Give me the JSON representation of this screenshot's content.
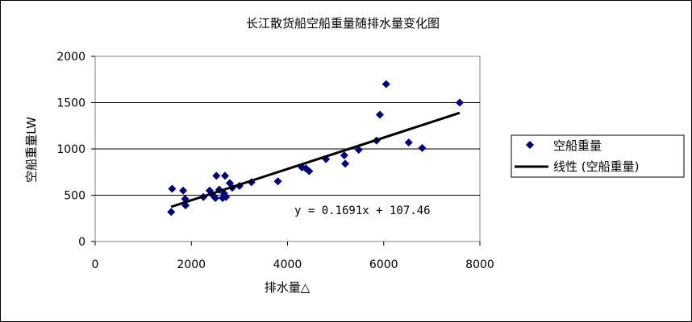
{
  "chart_data": {
    "type": "scatter",
    "title": "长江散货船空船重量随排水量变化图",
    "xlabel": "排水量△",
    "ylabel": "空船重量LW",
    "xlim": [
      0,
      8000
    ],
    "ylim": [
      0,
      2000
    ],
    "x_ticks": [
      "0",
      "2000",
      "4000",
      "6000",
      "8000"
    ],
    "y_ticks": [
      "0",
      "500",
      "1000",
      "1500",
      "2000"
    ],
    "grid": "horizontal",
    "legend_position": "right",
    "marker_color": "#000080",
    "trend_color": "#000000",
    "series": [
      {
        "name": "空船重量",
        "points": [
          [
            1580,
            320
          ],
          [
            1600,
            570
          ],
          [
            1830,
            550
          ],
          [
            1870,
            460
          ],
          [
            1880,
            390
          ],
          [
            2250,
            480
          ],
          [
            2380,
            550
          ],
          [
            2450,
            500
          ],
          [
            2500,
            470
          ],
          [
            2520,
            710
          ],
          [
            2580,
            560
          ],
          [
            2650,
            470
          ],
          [
            2680,
            520
          ],
          [
            2700,
            710
          ],
          [
            2720,
            480
          ],
          [
            2800,
            630
          ],
          [
            2850,
            580
          ],
          [
            3000,
            600
          ],
          [
            3250,
            640
          ],
          [
            3800,
            650
          ],
          [
            4300,
            800
          ],
          [
            4380,
            790
          ],
          [
            4450,
            760
          ],
          [
            4800,
            890
          ],
          [
            5180,
            930
          ],
          [
            5200,
            840
          ],
          [
            5480,
            990
          ],
          [
            5850,
            1090
          ],
          [
            5920,
            1370
          ],
          [
            6050,
            1700
          ],
          [
            6520,
            1070
          ],
          [
            6800,
            1010
          ],
          [
            7580,
            1500
          ]
        ]
      }
    ],
    "trendline": {
      "name": "线性 (空船重量)",
      "slope": 0.1691,
      "intercept": 107.46,
      "x_range": [
        1580,
        7580
      ],
      "equation": "y = 0.1691x + 107.46"
    }
  }
}
